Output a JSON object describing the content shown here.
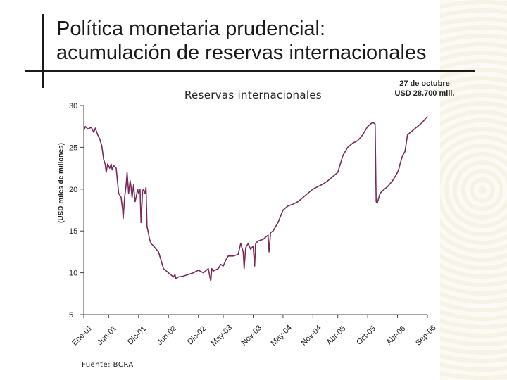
{
  "slide": {
    "title_line1": "Política monetaria prudencial:",
    "title_line2": "acumulación de reservas internacionales",
    "source": "Fuente: BCRA"
  },
  "chart_data": {
    "type": "line",
    "title": "Reservas internacionales",
    "ylabel": "(USD miles de millones)",
    "xlabel": "",
    "ylim": [
      5,
      30
    ],
    "xlim": [
      0,
      69
    ],
    "yticks": [
      5,
      10,
      15,
      20,
      25,
      30
    ],
    "ytick_labels": [
      "5",
      "10",
      "15",
      "20",
      "25",
      "30"
    ],
    "xtick_positions": [
      0,
      5,
      11,
      17,
      23,
      28,
      34,
      40,
      46,
      51,
      57,
      63,
      69
    ],
    "xtick_labels": [
      "Ene-01",
      "Jun-01",
      "Dic-01",
      "Jun-02",
      "Dic-02",
      "May-03",
      "Nov-03",
      "May-04",
      "Nov-04",
      "Abr-05",
      "Oct-05",
      "Abr-06",
      "Sep-06"
    ],
    "annotation": {
      "line1": "27 de octubre",
      "line2": "USD 28.700 mill.",
      "x": 69,
      "y": 28.7
    },
    "series": [
      {
        "color": "#7a2a5a",
        "x": [
          0,
          0.3,
          0.8,
          1.5,
          2.0,
          2.3,
          2.8,
          3.2,
          3.6,
          4.0,
          4.3,
          4.5,
          4.8,
          5.2,
          5.5,
          5.7,
          6.0,
          6.5,
          7.0,
          7.5,
          7.8,
          7.9,
          8.2,
          8.5,
          8.7,
          9.0,
          9.3,
          9.5,
          9.7,
          10.0,
          10.3,
          10.5,
          10.8,
          11.0,
          11.3,
          11.5,
          11.8,
          12.0,
          12.3,
          12.5,
          12.7,
          12.9,
          13.2,
          13.5,
          14.0,
          15.0,
          16.0,
          17.0,
          18.0,
          18.3,
          18.5,
          19.0,
          20.0,
          21.0,
          22.0,
          23.0,
          24.0,
          25.0,
          25.5,
          25.7,
          26.0,
          27.0,
          27.5,
          28.0,
          28.5,
          29.0,
          30.0,
          31.0,
          31.5,
          32.0,
          32.2,
          32.5,
          33.0,
          33.5,
          34.0,
          34.3,
          34.5,
          35.0,
          36.0,
          37.0,
          37.2,
          37.5,
          38.0,
          39.0,
          40.0,
          41.0,
          42.0,
          43.0,
          44.0,
          45.0,
          46.0,
          47.0,
          48.0,
          49.0,
          50.0,
          51.0,
          52.0,
          53.0,
          54.0,
          55.0,
          56.0,
          56.5,
          57.0,
          58.0,
          58.5,
          58.7,
          58.9,
          59.5,
          60.0,
          61.0,
          62.0,
          63.0,
          63.3,
          63.5,
          64.0,
          64.5,
          65.0,
          66.0,
          67.0,
          68.0,
          69.0
        ],
        "y": [
          27.0,
          27.5,
          27.2,
          27.4,
          26.8,
          27.3,
          26.5,
          26.0,
          25.2,
          23.5,
          23.0,
          22.0,
          23.0,
          22.5,
          23.0,
          22.3,
          22.8,
          22.5,
          19.5,
          19.0,
          17.5,
          16.5,
          19.0,
          20.5,
          22.0,
          19.5,
          21.0,
          20.2,
          19.0,
          20.5,
          18.5,
          19.0,
          20.0,
          19.5,
          20.0,
          16.0,
          19.8,
          20.0,
          19.5,
          20.2,
          15.5,
          15.0,
          14.0,
          13.5,
          13.2,
          12.5,
          10.5,
          10.0,
          9.5,
          9.8,
          9.3,
          9.5,
          9.6,
          9.8,
          10.0,
          10.3,
          10.0,
          10.5,
          9.0,
          10.5,
          10.2,
          10.5,
          11.0,
          10.8,
          11.5,
          12.0,
          12.0,
          12.2,
          13.5,
          12.5,
          10.5,
          13.0,
          13.5,
          12.8,
          13.2,
          10.8,
          13.5,
          13.8,
          14.0,
          14.5,
          12.5,
          14.8,
          15.0,
          16.0,
          17.5,
          18.0,
          18.2,
          18.5,
          19.0,
          19.5,
          20.0,
          20.3,
          20.6,
          21.0,
          21.5,
          22.0,
          24.0,
          25.0,
          25.5,
          25.8,
          26.5,
          27.0,
          27.5,
          28.0,
          27.8,
          18.5,
          18.3,
          19.5,
          19.8,
          20.3,
          21.0,
          22.0,
          22.5,
          23.0,
          24.0,
          24.5,
          26.5,
          27.0,
          27.5,
          28.0,
          28.7
        ]
      }
    ]
  }
}
